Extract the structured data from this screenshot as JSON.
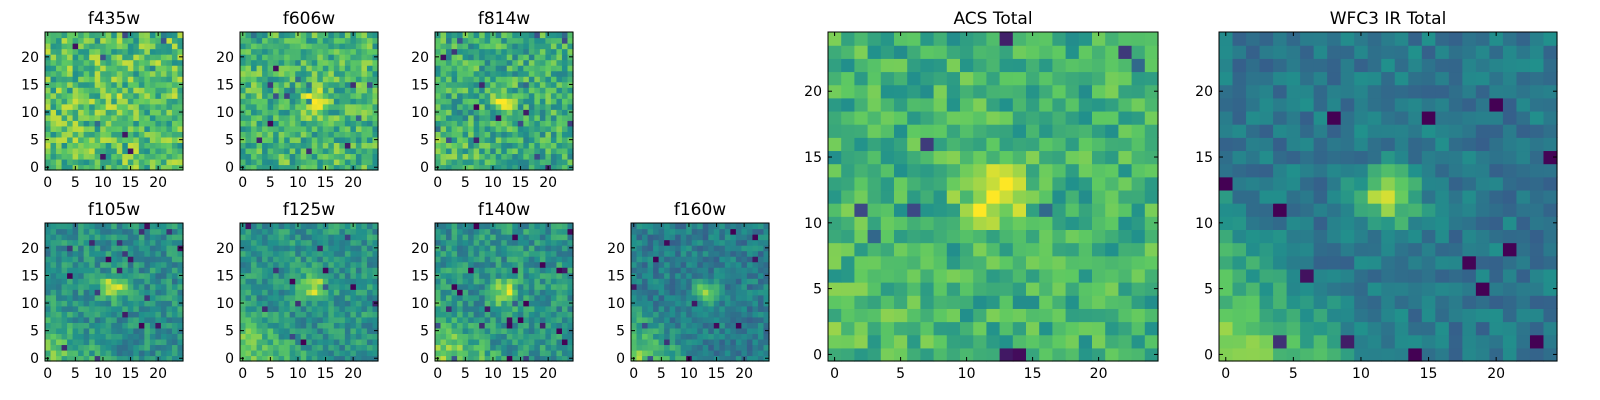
{
  "chart_data": {
    "type": "heatmap",
    "colormap": "viridis",
    "colormap_stops": [
      "#440154",
      "#3b528b",
      "#21918c",
      "#5ec962",
      "#fde725"
    ],
    "panels": [
      {
        "title": "f435w",
        "size": "small",
        "grid": 25,
        "x_ticks": [
          "0",
          "5",
          "10",
          "15",
          "20"
        ],
        "y_ticks": [
          "0",
          "5",
          "10",
          "15",
          "20"
        ],
        "source": {
          "x": 12,
          "y": 12,
          "amp": 0.05,
          "sigma": 1.5
        },
        "background": 0.7,
        "noise": 0.22,
        "gradient": 0.0,
        "seed": 11
      },
      {
        "title": "f606w",
        "size": "small",
        "grid": 25,
        "x_ticks": [
          "0",
          "5",
          "10",
          "15",
          "20"
        ],
        "y_ticks": [
          "0",
          "5",
          "10",
          "15",
          "20"
        ],
        "source": {
          "x": 13,
          "y": 12,
          "amp": 0.35,
          "sigma": 1.4
        },
        "background": 0.66,
        "noise": 0.2,
        "gradient": 0.0,
        "seed": 23
      },
      {
        "title": "f814w",
        "size": "small",
        "grid": 25,
        "x_ticks": [
          "0",
          "5",
          "10",
          "15",
          "20"
        ],
        "y_ticks": [
          "0",
          "5",
          "10",
          "15",
          "20"
        ],
        "source": {
          "x": 12,
          "y": 12,
          "amp": 0.35,
          "sigma": 1.4
        },
        "background": 0.62,
        "noise": 0.2,
        "gradient": 0.1,
        "seed": 37
      },
      {
        "title": "f105w",
        "size": "small",
        "grid": 25,
        "x_ticks": [
          "0",
          "5",
          "10",
          "15",
          "20"
        ],
        "y_ticks": [
          "0",
          "5",
          "10",
          "15",
          "20"
        ],
        "source": {
          "x": 12,
          "y": 13,
          "amp": 0.45,
          "sigma": 1.5
        },
        "background": 0.5,
        "noise": 0.14,
        "gradient": 0.25,
        "seed": 41
      },
      {
        "title": "f125w",
        "size": "small",
        "grid": 25,
        "x_ticks": [
          "0",
          "5",
          "10",
          "15",
          "20"
        ],
        "y_ticks": [
          "0",
          "5",
          "10",
          "15",
          "20"
        ],
        "source": {
          "x": 13,
          "y": 13,
          "amp": 0.4,
          "sigma": 1.6
        },
        "background": 0.52,
        "noise": 0.14,
        "gradient": 0.3,
        "seed": 53
      },
      {
        "title": "f140w",
        "size": "small",
        "grid": 25,
        "x_ticks": [
          "0",
          "5",
          "10",
          "15",
          "20"
        ],
        "y_ticks": [
          "0",
          "5",
          "10",
          "15",
          "20"
        ],
        "source": {
          "x": 12,
          "y": 12,
          "amp": 0.4,
          "sigma": 1.6
        },
        "background": 0.52,
        "noise": 0.15,
        "gradient": 0.35,
        "seed": 67
      },
      {
        "title": "f160w",
        "size": "small",
        "grid": 25,
        "x_ticks": [
          "0",
          "5",
          "10",
          "15",
          "20"
        ],
        "y_ticks": [
          "0",
          "5",
          "10",
          "15",
          "20"
        ],
        "source": {
          "x": 13,
          "y": 12,
          "amp": 0.4,
          "sigma": 1.5
        },
        "background": 0.42,
        "noise": 0.12,
        "gradient": 0.4,
        "seed": 79
      },
      {
        "title": "ACS Total",
        "size": "large",
        "grid": 25,
        "x_ticks": [
          "0",
          "5",
          "10",
          "15",
          "20"
        ],
        "y_ticks": [
          "0",
          "5",
          "10",
          "15",
          "20"
        ],
        "source": {
          "x": 12,
          "y": 12,
          "amp": 0.4,
          "sigma": 1.6
        },
        "background": 0.64,
        "noise": 0.16,
        "gradient": 0.05,
        "seed": 97
      },
      {
        "title": "WFC3 IR Total",
        "size": "large",
        "grid": 25,
        "x_ticks": [
          "0",
          "5",
          "10",
          "15",
          "20"
        ],
        "y_ticks": [
          "0",
          "5",
          "10",
          "15",
          "20"
        ],
        "source": {
          "x": 12,
          "y": 12,
          "amp": 0.5,
          "sigma": 1.5
        },
        "background": 0.4,
        "noise": 0.1,
        "gradient": 0.45,
        "seed": 131
      }
    ]
  }
}
